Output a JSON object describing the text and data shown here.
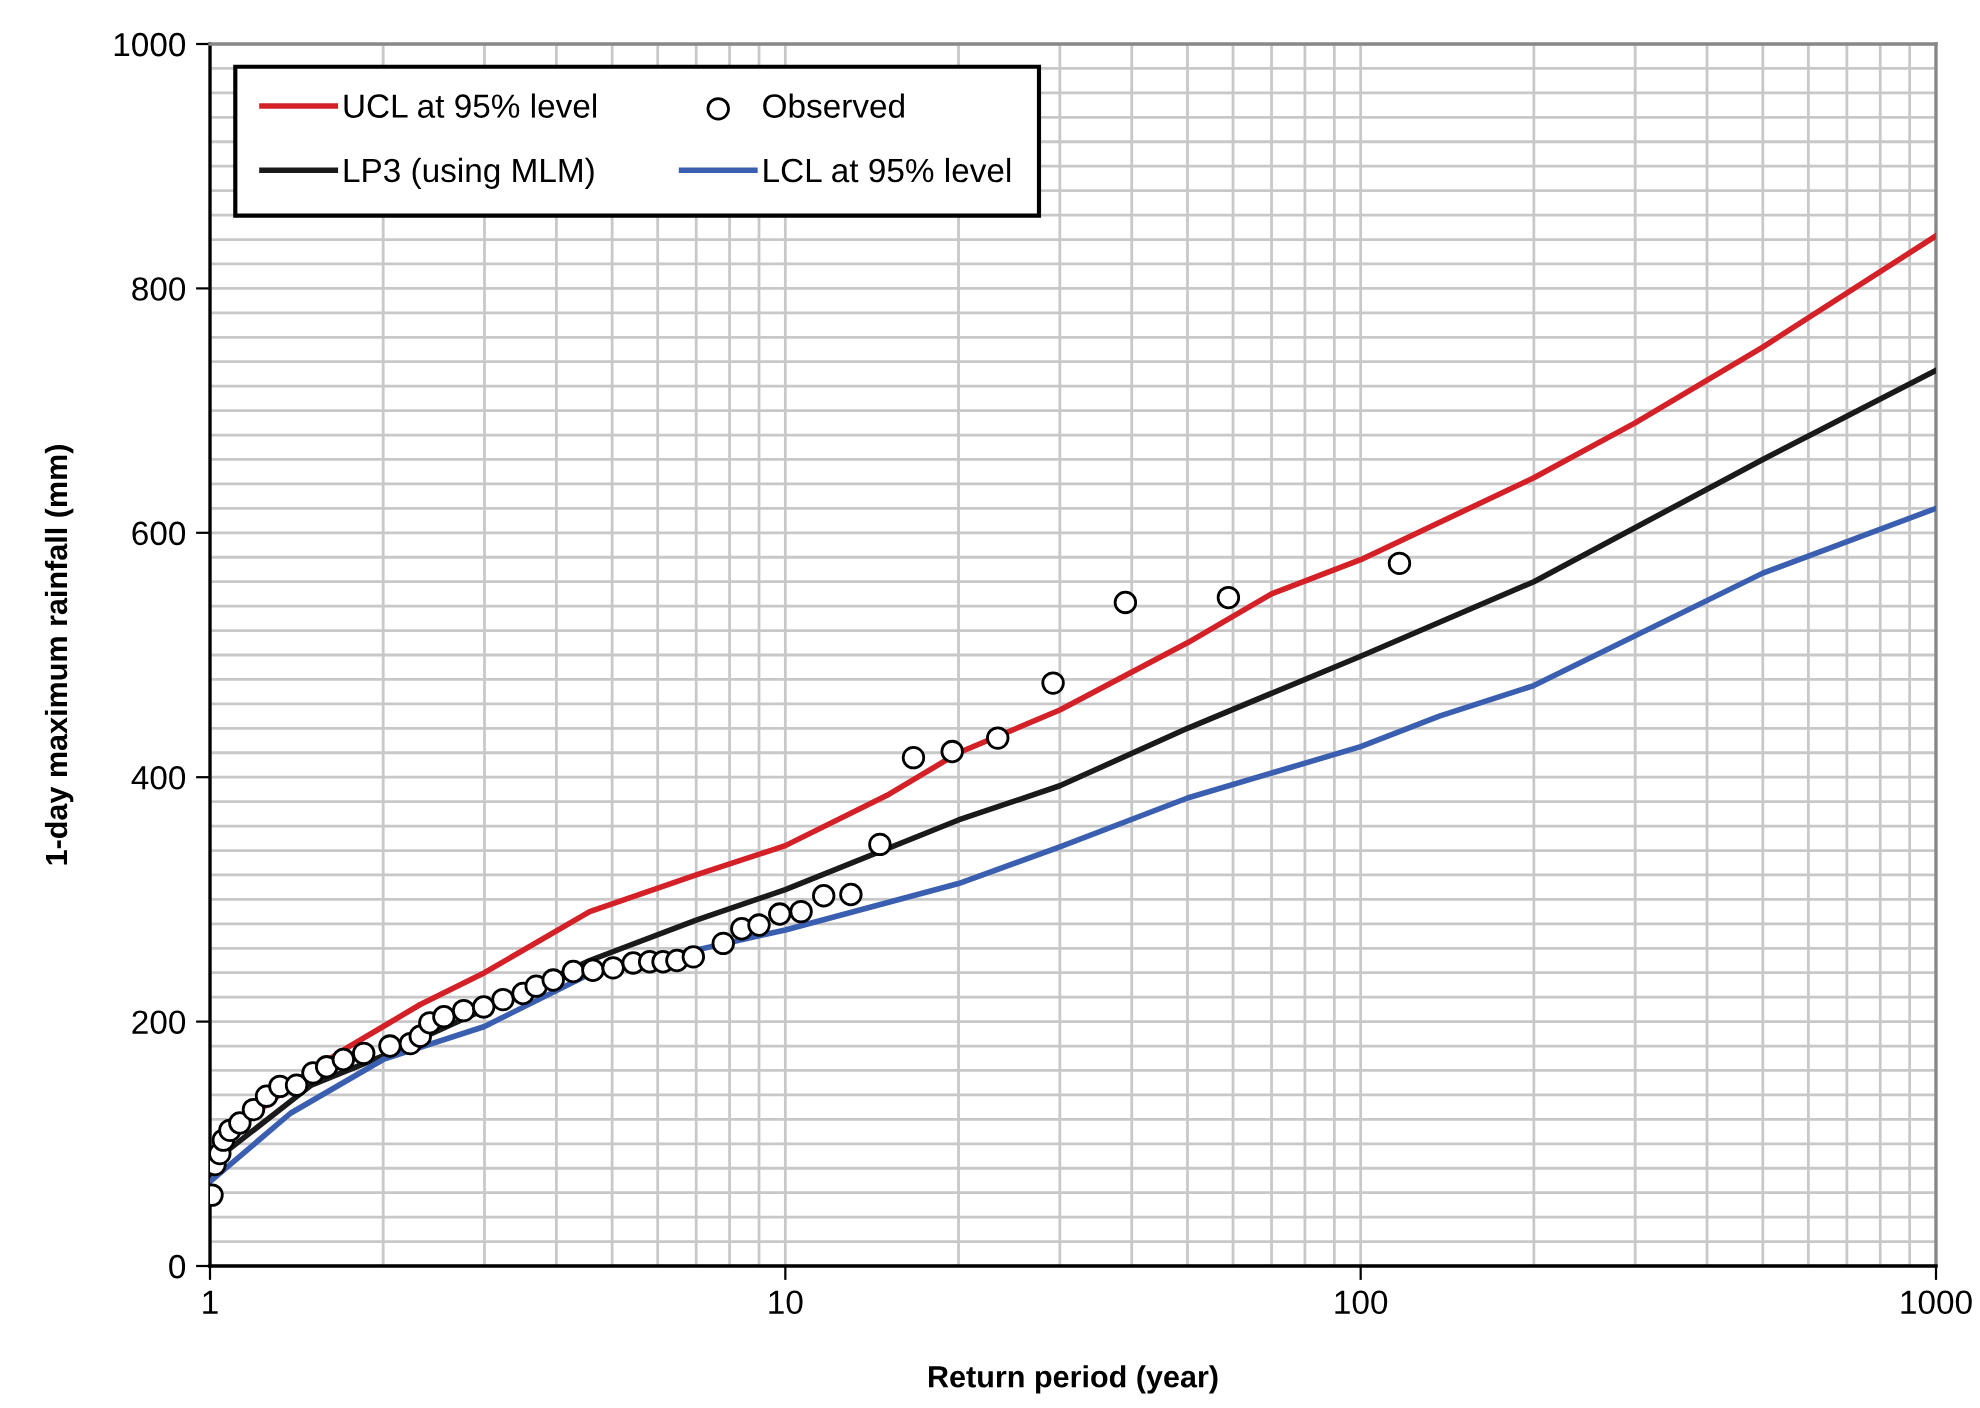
{
  "chart_data": {
    "type": "line",
    "xlabel": "Return period (year)",
    "ylabel": "1-day maximum rainfall (mm)",
    "log": "x",
    "xlim": [
      1,
      1000
    ],
    "xticks": [
      1,
      10,
      100,
      1000
    ],
    "ylim": [
      0,
      1000
    ],
    "yticks": [
      0,
      200,
      400,
      600,
      800,
      1000
    ],
    "grid": true,
    "legend": "top left",
    "series": [
      {
        "name": "UCL at 95% level",
        "color": "#d42027",
        "x": [
          1.05,
          1.2,
          1.5,
          1.75,
          2,
          2.32,
          3,
          4.57,
          7,
          10,
          15,
          20,
          30,
          50,
          70,
          100,
          200,
          300,
          500,
          1000
        ],
        "values": [
          97,
          125,
          160,
          180,
          196,
          214,
          240,
          290,
          320,
          344,
          385,
          420,
          455,
          510,
          550,
          578,
          645,
          690,
          752,
          843
        ]
      },
      {
        "name": "LP3 (using MLM)",
        "color": "#1a1a1a",
        "x": [
          1.03,
          1.5,
          2,
          3,
          4.57,
          7,
          10,
          20,
          30,
          50,
          100,
          200,
          500,
          1000
        ],
        "values": [
          88,
          148,
          172,
          210,
          250,
          283,
          308,
          365,
          393,
          440,
          499,
          560,
          660,
          733
        ]
      },
      {
        "type": "scatter",
        "name": "Observed",
        "color": "#000000",
        "marker": "circle",
        "x": [
          1.008,
          1.02,
          1.04,
          1.055,
          1.083,
          1.127,
          1.19,
          1.254,
          1.323,
          1.414,
          1.51,
          1.595,
          1.705,
          1.85,
          2.055,
          2.23,
          2.32,
          2.41,
          2.55,
          2.76,
          2.99,
          3.23,
          3.5,
          3.69,
          3.95,
          4.28,
          4.63,
          5.02,
          5.44,
          5.81,
          6.13,
          6.48,
          6.92,
          7.8,
          8.4,
          9.0,
          9.78,
          10.65,
          11.66,
          13.0,
          14.6,
          16.7,
          19.5,
          23.4,
          29.2,
          39.0,
          58.9,
          116.8
        ],
        "values": [
          58,
          83,
          92,
          103,
          111,
          117,
          128,
          139,
          147,
          148,
          158,
          163,
          169,
          174,
          180,
          182,
          188,
          199,
          204,
          209,
          212,
          218,
          223,
          229,
          234,
          241,
          242,
          244,
          248,
          249,
          249,
          250,
          253,
          264,
          276,
          279,
          288,
          290,
          303,
          304,
          345,
          416,
          421,
          432,
          477,
          543,
          547,
          575
        ]
      },
      {
        "name": "LCL at 95% level",
        "color": "#3b5fb0",
        "x": [
          1,
          1.38,
          2,
          3,
          4.57,
          10,
          20,
          30,
          50,
          100,
          137,
          200,
          500,
          1000
        ],
        "values": [
          69,
          125,
          169,
          196,
          239,
          275,
          313,
          343,
          383,
          425,
          450,
          475,
          567,
          620
        ]
      }
    ]
  }
}
